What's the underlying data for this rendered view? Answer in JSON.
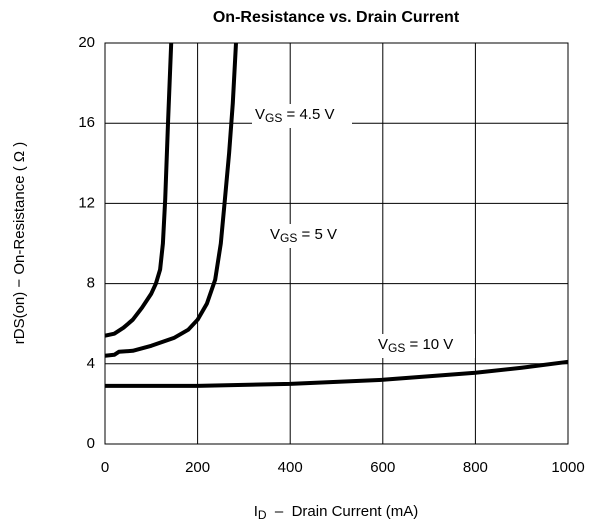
{
  "chart_data": {
    "type": "line",
    "title": "On-Resistance vs. Drain Current",
    "x_label": {
      "base": "I",
      "sub": "D",
      "rest": "  –  Drain Current (mA)"
    },
    "y_label": "rDS(on) − On-Resistance ( Ω )",
    "xlim": [
      0,
      1000
    ],
    "xticks": [
      0,
      200,
      400,
      600,
      800,
      1000
    ],
    "ylim": [
      0,
      20
    ],
    "yticks": [
      0,
      4,
      8,
      12,
      16,
      20
    ],
    "grid": true,
    "series": [
      {
        "label": {
          "base": "V",
          "sub": "GS",
          "rest": " = 4.5 V"
        },
        "color": "#000000",
        "x": [
          0,
          20,
          40,
          60,
          80,
          100,
          110,
          119,
          125,
          130,
          136,
          143
        ],
        "values": [
          5.4,
          5.5,
          5.8,
          6.2,
          6.8,
          7.5,
          8.0,
          8.7,
          10.0,
          12.2,
          16.0,
          20.0
        ]
      },
      {
        "label": {
          "base": "V",
          "sub": "GS",
          "rest": " = 5 V"
        },
        "color": "#000000",
        "x": [
          0,
          20,
          30,
          60,
          100,
          150,
          180,
          200,
          220,
          238,
          250,
          259,
          268,
          276,
          283
        ],
        "values": [
          4.4,
          4.45,
          4.6,
          4.65,
          4.9,
          5.3,
          5.7,
          6.2,
          7.0,
          8.2,
          10.0,
          12.2,
          14.5,
          17.0,
          20.0
        ]
      },
      {
        "label": {
          "base": "V",
          "sub": "GS",
          "rest": " = 10 V"
        },
        "color": "#000000",
        "x": [
          0,
          200,
          400,
          600,
          800,
          900,
          1000
        ],
        "values": [
          2.9,
          2.9,
          3.0,
          3.2,
          3.55,
          3.8,
          4.1
        ]
      }
    ]
  }
}
